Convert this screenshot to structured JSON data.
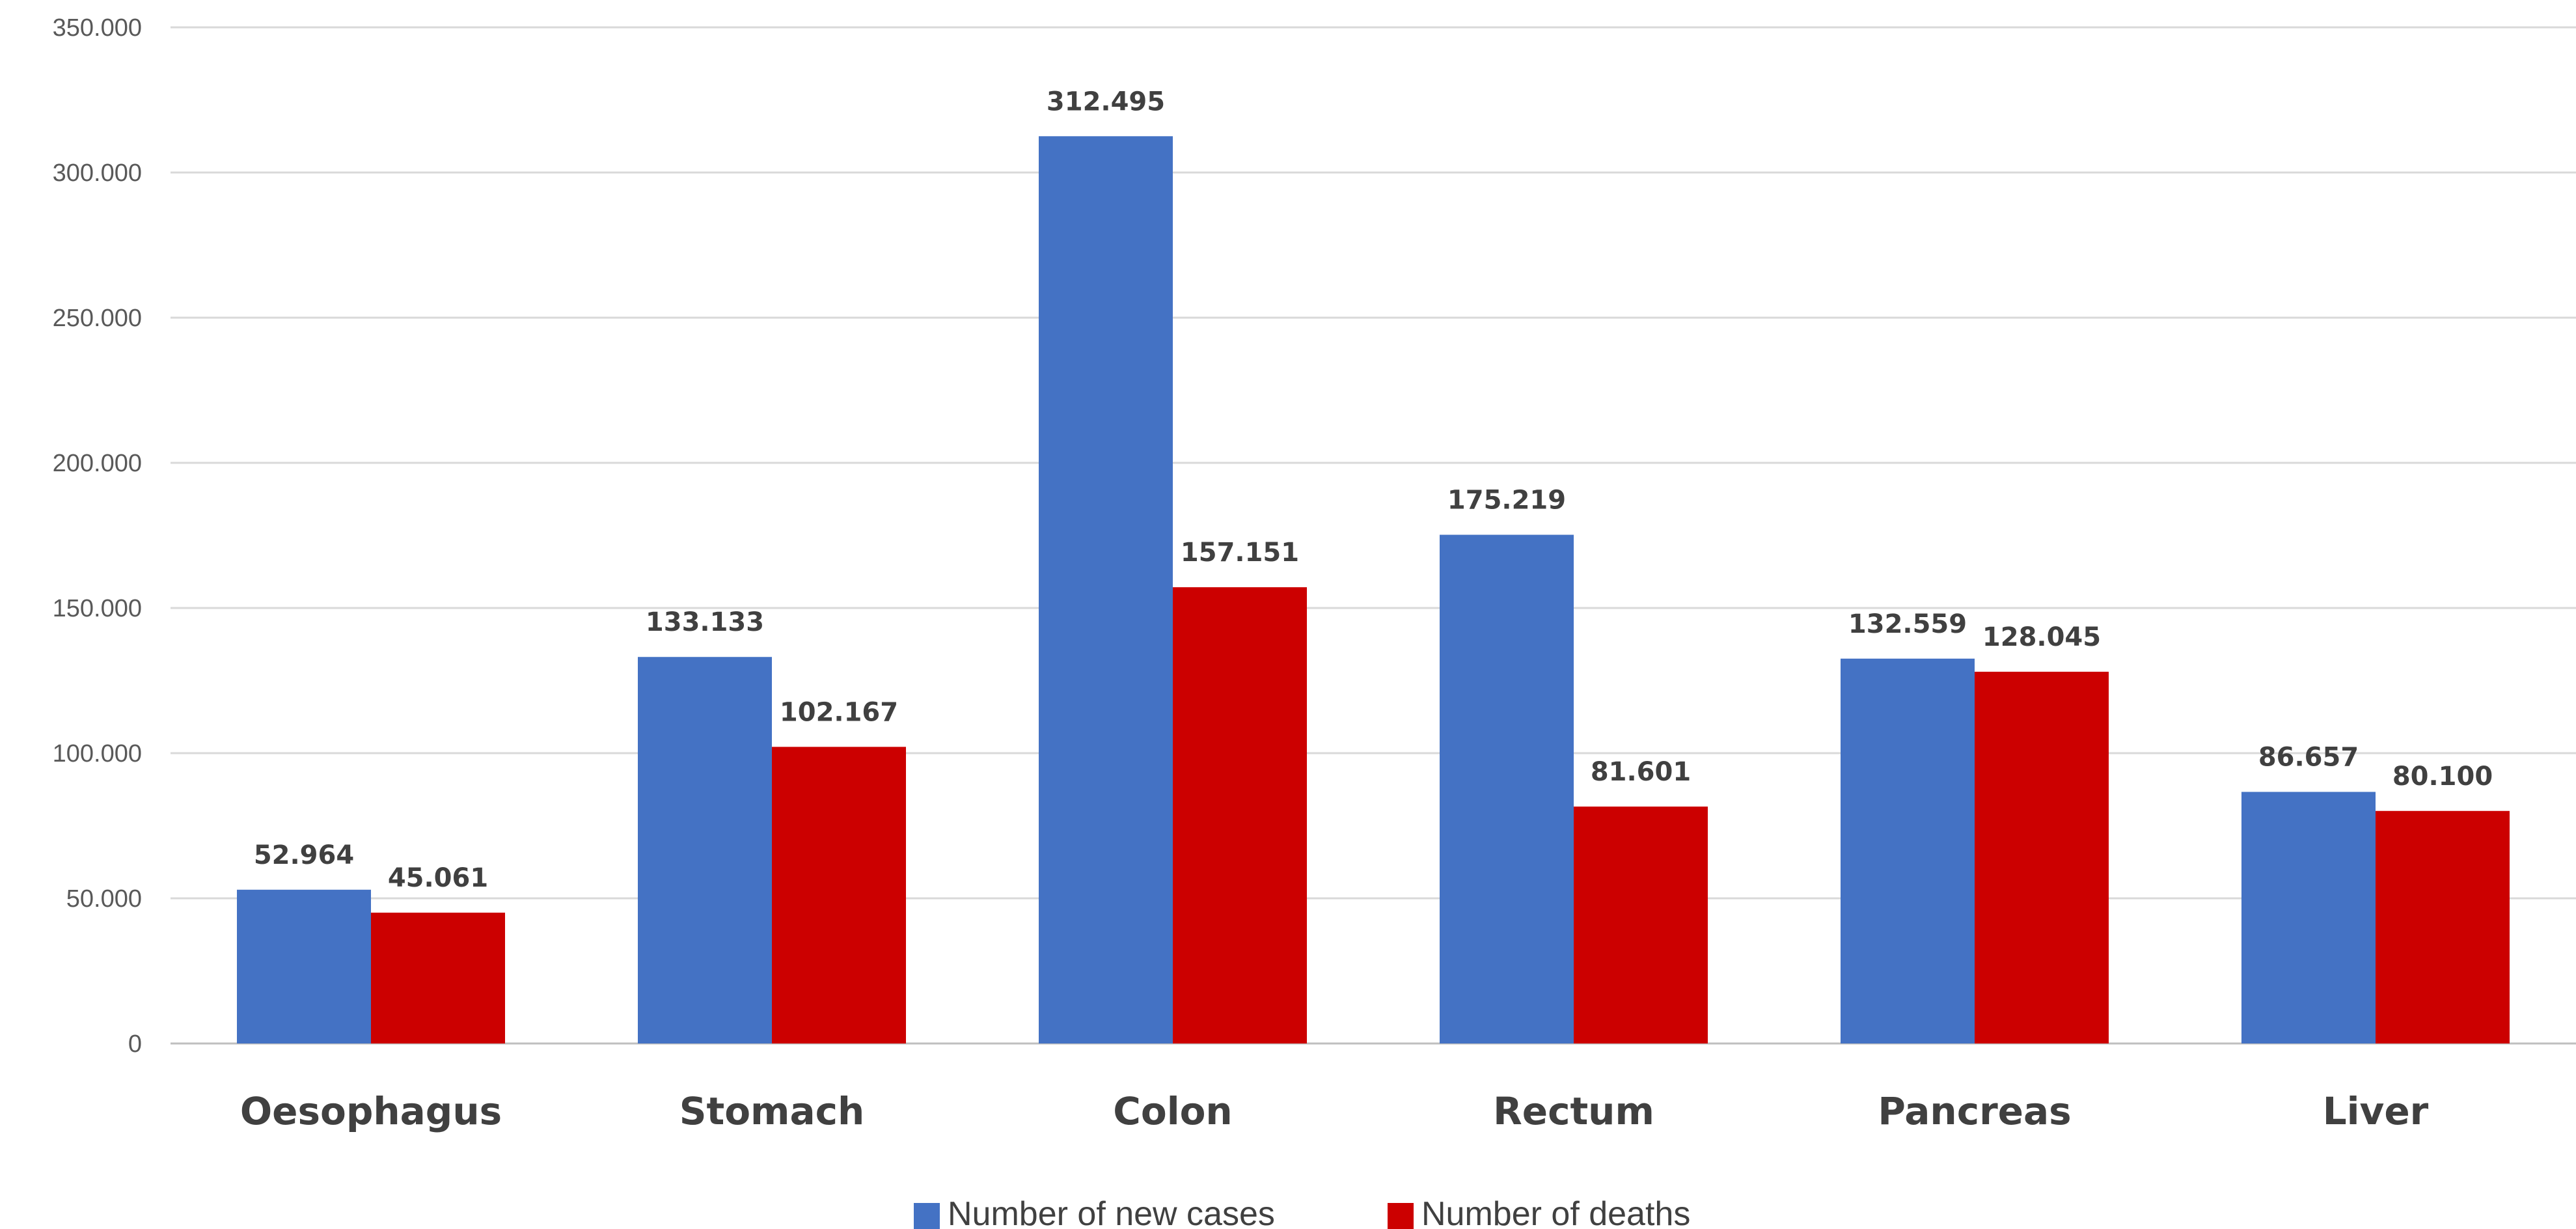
{
  "chart_data": {
    "type": "bar",
    "title": "",
    "xlabel": "",
    "ylabel": "",
    "categories": [
      "Oesophagus",
      "Stomach",
      "Colon",
      "Rectum",
      "Pancreas",
      "Liver"
    ],
    "series": [
      {
        "name": "Number of new cases",
        "color": "#4472C4",
        "values": [
          52964,
          133133,
          312495,
          175219,
          132559,
          86657
        ],
        "labels": [
          "52.964",
          "133.133",
          "312.495",
          "175.219",
          "132.559",
          "86.657"
        ]
      },
      {
        "name": "Number of deaths",
        "color": "#CC0000",
        "values": [
          45061,
          102167,
          157151,
          81601,
          128045,
          80100
        ],
        "labels": [
          "45.061",
          "102.167",
          "157.151",
          "81.601",
          "128.045",
          "80.100"
        ]
      }
    ],
    "ylim": [
      0,
      350000
    ],
    "yticks": [
      0,
      50000,
      100000,
      150000,
      200000,
      250000,
      300000,
      350000
    ],
    "ytick_labels": [
      "0",
      "50.000",
      "100.000",
      "150.000",
      "200.000",
      "250.000",
      "300.000",
      "350.000"
    ],
    "grid": true,
    "legend_position": "bottom-center"
  }
}
